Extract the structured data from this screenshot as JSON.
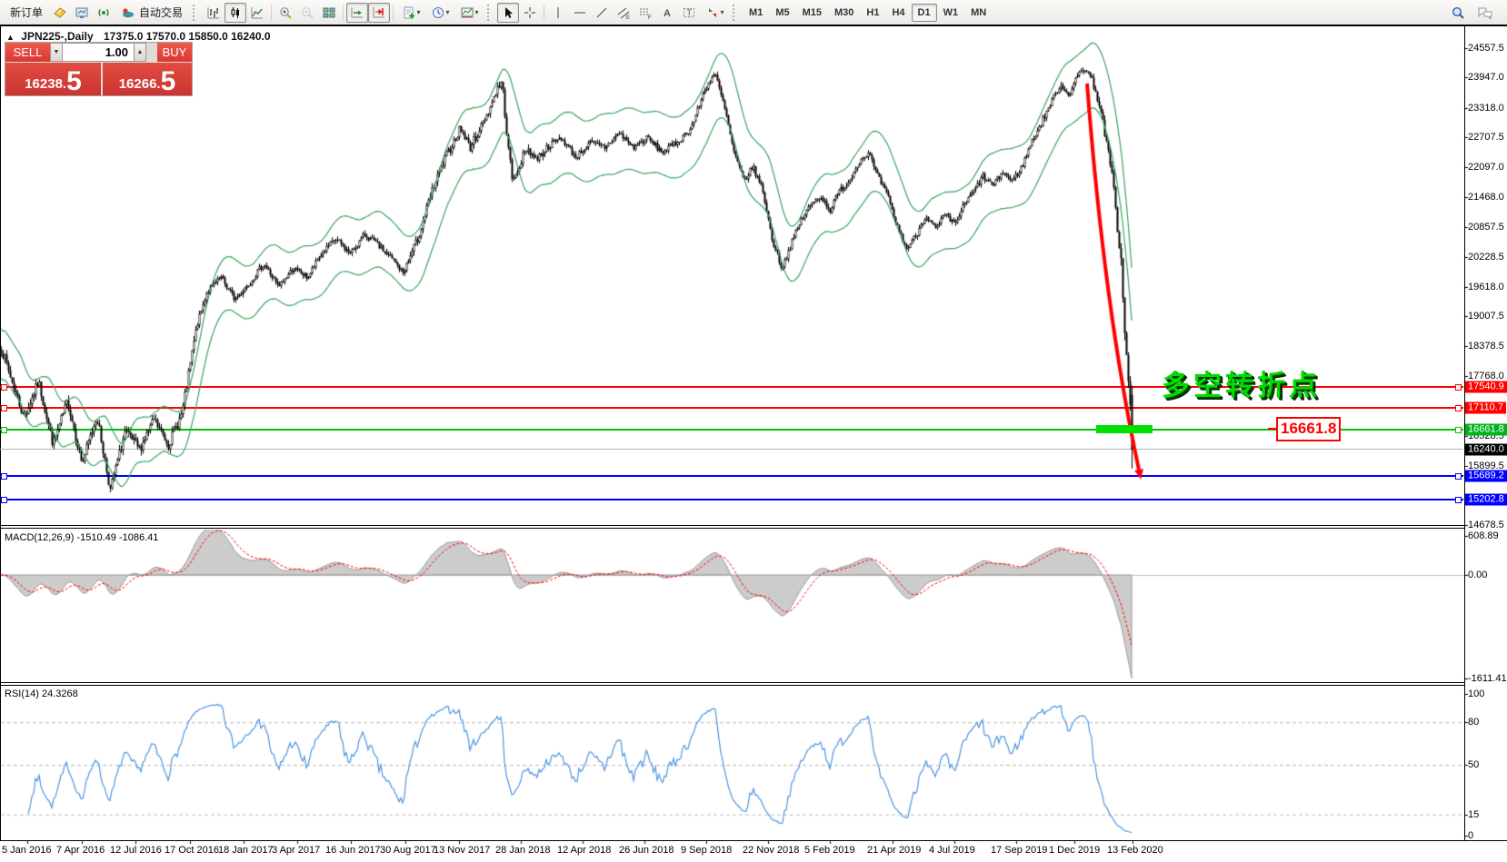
{
  "window": {
    "new_order_label": "新订单",
    "autotrading_label": "自动交易",
    "timeframes": [
      "M1",
      "M5",
      "M15",
      "M30",
      "H1",
      "H4",
      "D1",
      "W1",
      "MN"
    ],
    "active_timeframe": "D1"
  },
  "header": {
    "collapse_glyph": "▲",
    "symbol_period": "JPN225-,Daily",
    "ohlc_text": "17375.0 17570.0 15850.0 16240.0"
  },
  "trade_panel": {
    "sell_label": "SELL",
    "buy_label": "BUY",
    "volume": "1.00",
    "spin_down_glyph": "▼",
    "spin_up_glyph": "▲",
    "sell_price_main": "16238",
    "sell_price_dot": ".",
    "sell_price_big": "5",
    "buy_price_main": "16266",
    "buy_price_dot": ".",
    "buy_price_big": "5"
  },
  "annotation": {
    "turning_point": "多空转折点",
    "price_callout": "16661.8"
  },
  "chart_data": {
    "type": "candlestick",
    "symbol": "JPN225-",
    "timeframe": "Daily",
    "current_ohlc": {
      "open": 17375.0,
      "high": 17570.0,
      "low": 15850.0,
      "close": 16240.0
    },
    "price_axis": {
      "top_value": 24557.5,
      "bottom_value": 14678.5,
      "ticks": [
        "24557.5",
        "23947.0",
        "23318.0",
        "22707.5",
        "22097.0",
        "21468.0",
        "20857.5",
        "20228.5",
        "19618.0",
        "19007.5",
        "18378.5",
        "17768.0",
        "16528.5",
        "15899.5",
        "14678.5"
      ]
    },
    "x_axis_dates": [
      "5 Jan 2016",
      "7 Apr 2016",
      "12 Jul 2016",
      "17 Oct 2016",
      "18 Jan 2017",
      "3 Apr 2017",
      "16 Jun 2017",
      "30 Aug 2017",
      "13 Nov 2017",
      "28 Jan 2018",
      "12 Apr 2018",
      "26 Jun 2018",
      "9 Sep 2018",
      "22 Nov 2018",
      "5 Feb 2019",
      "21 Apr 2019",
      "4 Jul 2019",
      "17 Sep 2019",
      "1 Dec 2019",
      "13 Feb 2020"
    ],
    "price_anchors": [
      [
        0,
        18400
      ],
      [
        12,
        17700
      ],
      [
        26,
        16900
      ],
      [
        42,
        17650
      ],
      [
        58,
        16350
      ],
      [
        74,
        17250
      ],
      [
        90,
        15950
      ],
      [
        106,
        16950
      ],
      [
        121,
        15400
      ],
      [
        137,
        16600
      ],
      [
        153,
        16250
      ],
      [
        169,
        16850
      ],
      [
        185,
        16350
      ],
      [
        200,
        17000
      ],
      [
        216,
        18800
      ],
      [
        227,
        19500
      ],
      [
        243,
        19800
      ],
      [
        258,
        19350
      ],
      [
        274,
        19700
      ],
      [
        290,
        20100
      ],
      [
        306,
        19600
      ],
      [
        322,
        20000
      ],
      [
        338,
        19800
      ],
      [
        353,
        20300
      ],
      [
        369,
        20600
      ],
      [
        385,
        20300
      ],
      [
        401,
        20700
      ],
      [
        417,
        20450
      ],
      [
        433,
        20150
      ],
      [
        443,
        19900
      ],
      [
        459,
        20600
      ],
      [
        475,
        21600
      ],
      [
        490,
        22300
      ],
      [
        506,
        22900
      ],
      [
        517,
        22500
      ],
      [
        528,
        22900
      ],
      [
        538,
        23300
      ],
      [
        546,
        23700
      ],
      [
        552,
        23850
      ],
      [
        558,
        22600
      ],
      [
        564,
        21750
      ],
      [
        572,
        22200
      ],
      [
        580,
        22500
      ],
      [
        589,
        22250
      ],
      [
        601,
        22500
      ],
      [
        617,
        22700
      ],
      [
        633,
        22300
      ],
      [
        649,
        22600
      ],
      [
        665,
        22500
      ],
      [
        681,
        22800
      ],
      [
        696,
        22500
      ],
      [
        712,
        22700
      ],
      [
        728,
        22400
      ],
      [
        744,
        22600
      ],
      [
        760,
        22900
      ],
      [
        775,
        23700
      ],
      [
        786,
        24050
      ],
      [
        797,
        23300
      ],
      [
        807,
        22400
      ],
      [
        818,
        21800
      ],
      [
        828,
        22100
      ],
      [
        839,
        21600
      ],
      [
        849,
        20600
      ],
      [
        860,
        20000
      ],
      [
        870,
        20500
      ],
      [
        881,
        21000
      ],
      [
        891,
        21300
      ],
      [
        902,
        21500
      ],
      [
        913,
        21200
      ],
      [
        923,
        21600
      ],
      [
        934,
        21800
      ],
      [
        944,
        22200
      ],
      [
        955,
        22400
      ],
      [
        965,
        21900
      ],
      [
        976,
        21500
      ],
      [
        986,
        20900
      ],
      [
        997,
        20400
      ],
      [
        1008,
        20700
      ],
      [
        1018,
        21100
      ],
      [
        1029,
        20800
      ],
      [
        1039,
        21100
      ],
      [
        1050,
        20900
      ],
      [
        1060,
        21300
      ],
      [
        1071,
        21600
      ],
      [
        1081,
        21900
      ],
      [
        1092,
        21700
      ],
      [
        1103,
        22000
      ],
      [
        1113,
        21800
      ],
      [
        1124,
        22100
      ],
      [
        1134,
        22600
      ],
      [
        1145,
        23000
      ],
      [
        1155,
        23400
      ],
      [
        1166,
        23800
      ],
      [
        1176,
        23600
      ],
      [
        1187,
        24050
      ],
      [
        1193,
        24150
      ],
      [
        1197,
        24050
      ],
      [
        1205,
        23700
      ],
      [
        1211,
        23200
      ],
      [
        1217,
        22600
      ],
      [
        1224,
        21800
      ],
      [
        1229,
        20900
      ],
      [
        1234,
        19900
      ],
      [
        1237,
        18700
      ],
      [
        1240,
        17800
      ],
      [
        1243,
        17200
      ],
      [
        1245,
        16240
      ]
    ],
    "envelope": {
      "period": 12,
      "deviation_pct": 2.8,
      "color": "#3aa55f"
    },
    "horizontal_lines": [
      {
        "value": 17540.9,
        "label": "17540.9",
        "color": "#ff0000",
        "label_bg": "#ff0000",
        "markers": true
      },
      {
        "value": 17110.7,
        "label": "17110.7",
        "color": "#ff0000",
        "label_bg": "#ff0000",
        "markers": true
      },
      {
        "value": 16661.8,
        "label": "16661.8",
        "color": "#00c000",
        "label_bg": "#00b41e",
        "markers": true
      },
      {
        "value": 16240.0,
        "label": "16240.0",
        "color": "#b4b4b4",
        "label_bg": "#000000",
        "markers": false,
        "current_price": true
      },
      {
        "value": 15689.2,
        "label": "15689.2",
        "color": "#0000ff",
        "label_bg": "#0000ff",
        "markers": true
      },
      {
        "value": 15202.8,
        "label": "15202.8",
        "color": "#0000ff",
        "label_bg": "#0000ff",
        "markers": true
      }
    ],
    "macd": {
      "label": "MACD(12,26,9) -1510.49 -1086.41",
      "params": [
        12,
        26,
        9
      ],
      "main_value": -1510.49,
      "signal_value": -1086.41,
      "axis_ticks": [
        "608.89",
        "0.00",
        "-1611.41"
      ]
    },
    "rsi": {
      "label": "RSI(14) 24.3268",
      "period": 14,
      "value": 24.3268,
      "levels": [
        80,
        50,
        15
      ],
      "axis_ticks": [
        "100",
        "80",
        "50",
        "15",
        "0"
      ]
    },
    "trend_arrow": {
      "color": "#ff0000",
      "from": [
        1196,
        92
      ],
      "to": [
        1253,
        517
      ]
    },
    "highlight_bar": {
      "price": 16661.8,
      "color": "#00e000"
    }
  },
  "colors": {
    "candle": "#000000",
    "envelope": "#3aa55f",
    "macd_fill": "#cccccc",
    "macd_edge": "#9a9a9a",
    "macd_signal": "#ff0000",
    "rsi_line": "#4a94e0",
    "level_dash": "#bbbbbb",
    "annotation_green": "#00dc00",
    "sell_buy_red": "#d93732"
  }
}
